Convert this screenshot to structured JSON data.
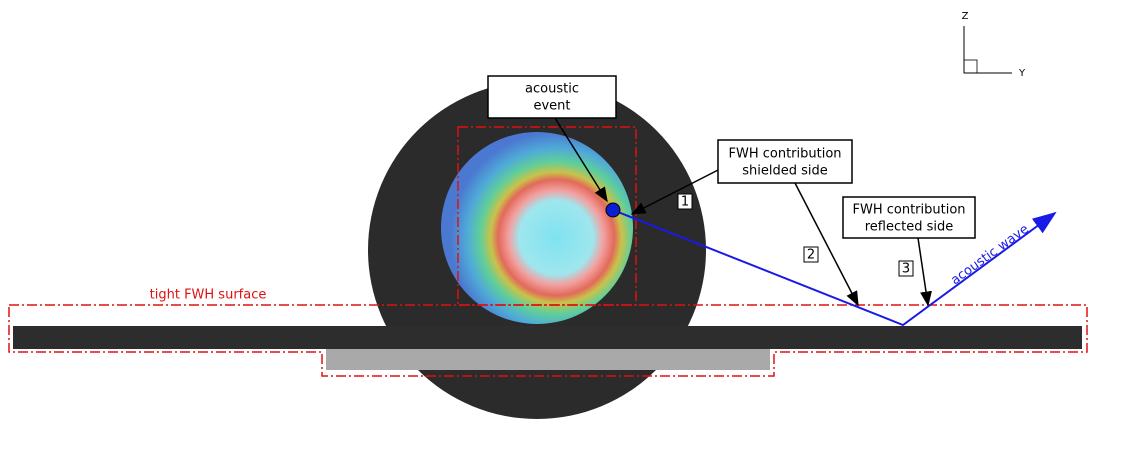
{
  "axes": {
    "z": "Z",
    "y": "Y"
  },
  "callouts": [
    {
      "lines": [
        "acoustic",
        "event"
      ]
    },
    {
      "lines": [
        "FWH contribution",
        "shielded side"
      ]
    },
    {
      "lines": [
        "FWH contribution",
        "reflected side"
      ]
    }
  ],
  "markers": [
    "1",
    "2",
    "3"
  ],
  "labels": {
    "fwh_surface": "tight FWH surface",
    "wave": "acoustic wave"
  }
}
